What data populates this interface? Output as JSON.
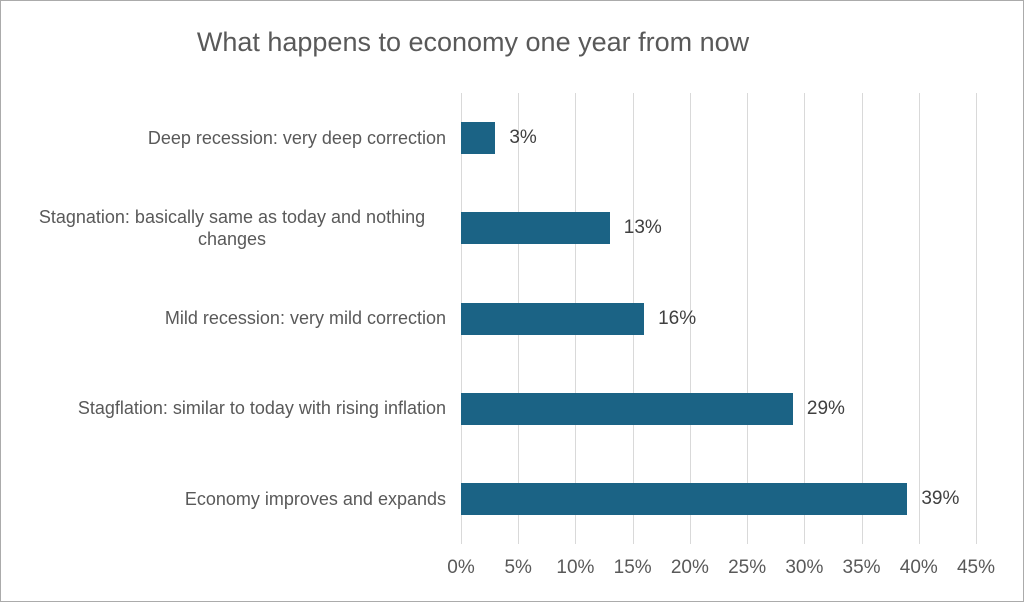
{
  "chart_data": {
    "type": "bar",
    "orientation": "horizontal",
    "title": "What happens to economy one year from now",
    "categories": [
      "Deep recession: very deep correction",
      "Stagnation: basically same as today and nothing changes",
      "Mild recession: very mild correction",
      "Stagflation: similar to today with rising inflation",
      "Economy improves and expands"
    ],
    "values": [
      3,
      13,
      16,
      29,
      39
    ],
    "data_labels": [
      "3%",
      "13%",
      "16%",
      "29%",
      "39%"
    ],
    "x_tick_values": [
      0,
      5,
      10,
      15,
      20,
      25,
      30,
      35,
      40,
      45
    ],
    "x_tick_labels": [
      "0%",
      "5%",
      "10%",
      "15%",
      "20%",
      "25%",
      "30%",
      "35%",
      "40%",
      "45%"
    ],
    "xlim": [
      0,
      45
    ],
    "xlabel": "",
    "ylabel": "",
    "grid": true,
    "legend": false,
    "bar_color": "#1b6385",
    "gridline_color": "#d9d9d9",
    "title_color": "#595959",
    "axis_text_color": "#595959",
    "data_label_color": "#404040"
  }
}
